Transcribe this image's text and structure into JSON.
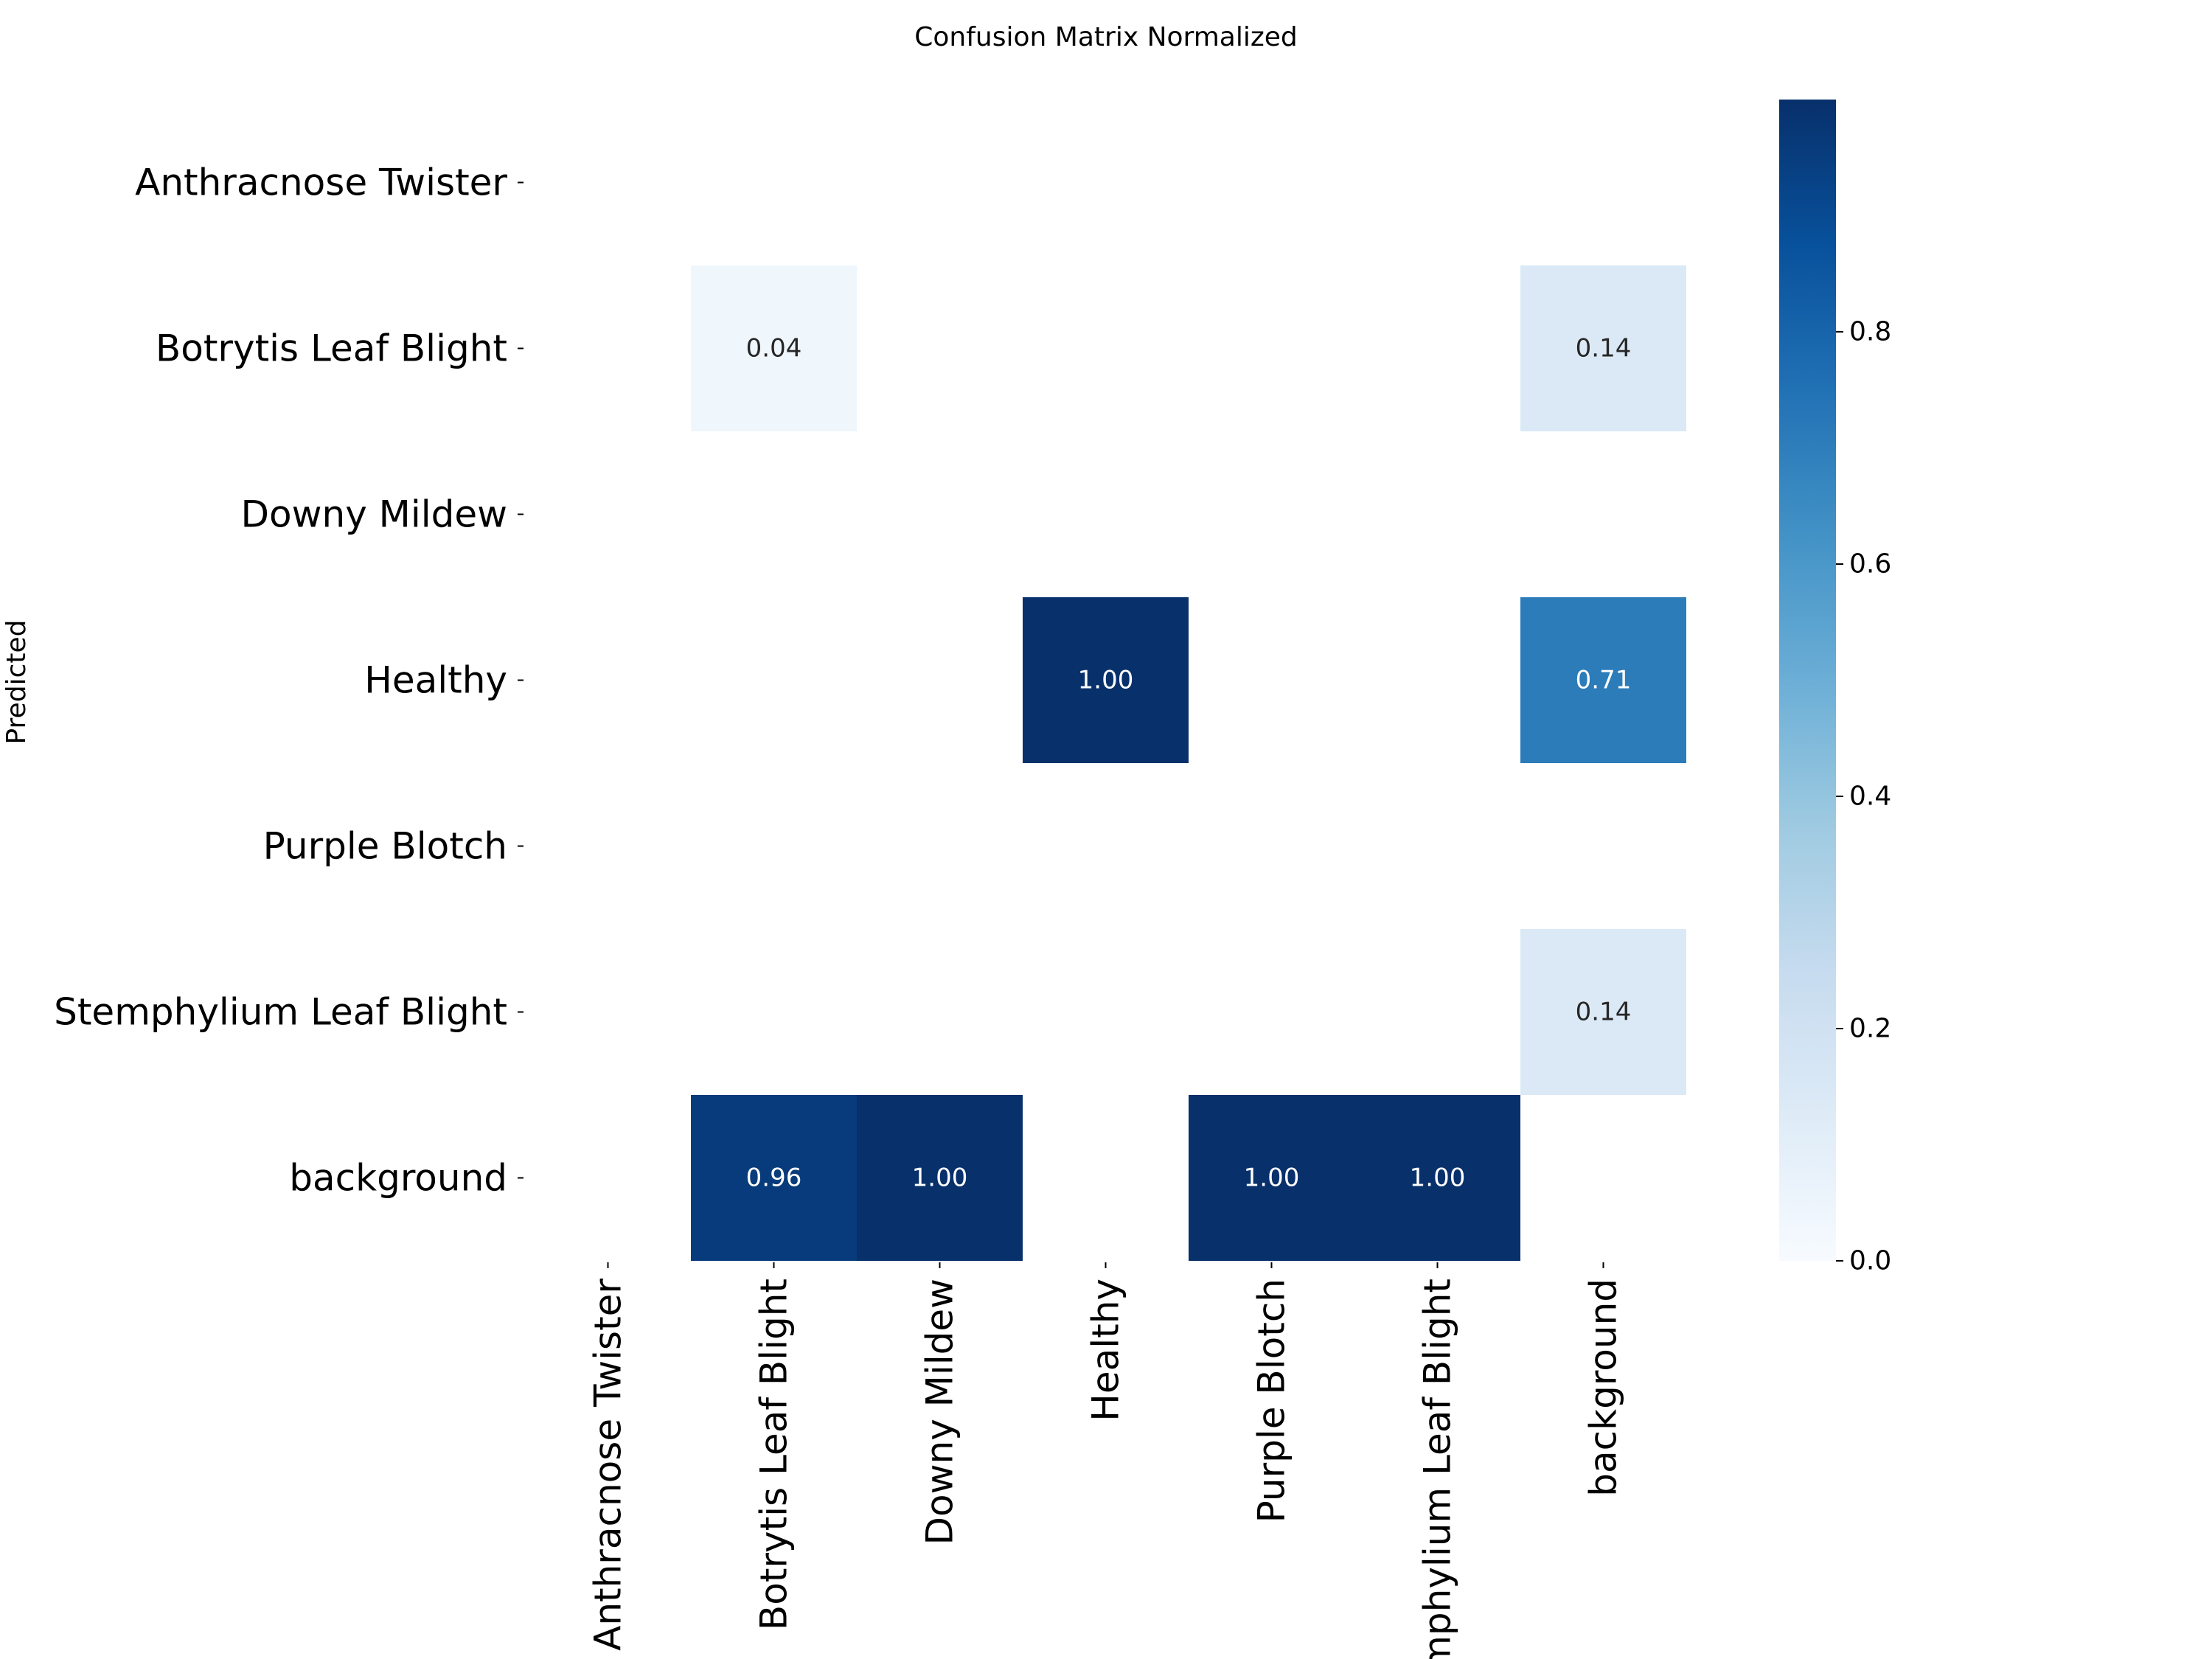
{
  "chart_data": {
    "type": "heatmap",
    "title": "Confusion Matrix Normalized",
    "xlabel": "",
    "ylabel": "Predicted",
    "x_categories": [
      "Anthracnose Twister",
      "Botrytis Leaf Blight",
      "Downy Mildew",
      "Healthy",
      "Purple Blotch",
      "Stemphylium Leaf Blight",
      "background"
    ],
    "y_categories": [
      "Anthracnose Twister",
      "Botrytis Leaf Blight",
      "Downy Mildew",
      "Healthy",
      "Purple Blotch",
      "Stemphylium Leaf Blight",
      "background"
    ],
    "values": [
      [
        null,
        null,
        null,
        null,
        null,
        null,
        null
      ],
      [
        null,
        0.04,
        null,
        null,
        null,
        null,
        0.14
      ],
      [
        null,
        null,
        null,
        null,
        null,
        null,
        null
      ],
      [
        null,
        null,
        null,
        1.0,
        null,
        null,
        0.71
      ],
      [
        null,
        null,
        null,
        null,
        null,
        null,
        null
      ],
      [
        null,
        null,
        null,
        null,
        null,
        null,
        0.14
      ],
      [
        null,
        0.96,
        1.0,
        null,
        1.0,
        1.0,
        null
      ]
    ],
    "colormap": "Blues",
    "colorbar": {
      "range": [
        0.0,
        1.0
      ],
      "ticks": [
        0.0,
        0.2,
        0.4,
        0.6,
        0.8
      ],
      "tick_labels": [
        "0.0",
        "0.2",
        "0.4",
        "0.6",
        "0.8"
      ]
    },
    "grid": false,
    "legend": "none"
  }
}
